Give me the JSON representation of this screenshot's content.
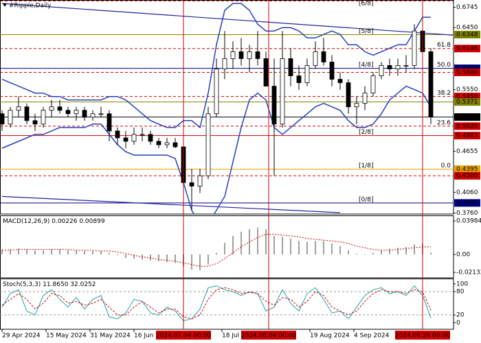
{
  "chart_data": {
    "type": "candlestick",
    "title": "#Ripple,Daily",
    "xlim": [
      "2024-04-29",
      "2024-10-10"
    ],
    "ylim": [
      0.3745,
      0.685
    ],
    "x": [
      "2024-04-29",
      "2024-05-02",
      "2024-05-05",
      "2024-05-08",
      "2024-05-11",
      "2024-05-14",
      "2024-05-17",
      "2024-05-20",
      "2024-05-23",
      "2024-05-26",
      "2024-05-29",
      "2024-06-01",
      "2024-06-04",
      "2024-06-07",
      "2024-06-10",
      "2024-06-13",
      "2024-06-16",
      "2024-06-19",
      "2024-06-22",
      "2024-06-25",
      "2024-06-28",
      "2024-07-01",
      "2024-07-04",
      "2024-07-07",
      "2024-07-10",
      "2024-07-13",
      "2024-07-16",
      "2024-07-19",
      "2024-07-22",
      "2024-07-25",
      "2024-07-28",
      "2024-07-31",
      "2024-08-03",
      "2024-08-06",
      "2024-08-09",
      "2024-08-12",
      "2024-08-15",
      "2024-08-18",
      "2024-08-21",
      "2024-08-24",
      "2024-08-27",
      "2024-08-30",
      "2024-09-02",
      "2024-09-05",
      "2024-09-08",
      "2024-09-11",
      "2024-09-14",
      "2024-09-17",
      "2024-09-20",
      "2024-09-23",
      "2024-09-26",
      "2024-09-29",
      "2024-10-02"
    ],
    "ohlc": [
      [
        0.52,
        0.525,
        0.495,
        0.505
      ],
      [
        0.505,
        0.53,
        0.5,
        0.525
      ],
      [
        0.525,
        0.545,
        0.515,
        0.53
      ],
      [
        0.53,
        0.535,
        0.505,
        0.51
      ],
      [
        0.51,
        0.52,
        0.495,
        0.505
      ],
      [
        0.505,
        0.53,
        0.5,
        0.525
      ],
      [
        0.525,
        0.54,
        0.515,
        0.53
      ],
      [
        0.53,
        0.54,
        0.52,
        0.525
      ],
      [
        0.525,
        0.53,
        0.515,
        0.52
      ],
      [
        0.52,
        0.53,
        0.51,
        0.525
      ],
      [
        0.525,
        0.53,
        0.51,
        0.515
      ],
      [
        0.515,
        0.525,
        0.51,
        0.52
      ],
      [
        0.52,
        0.53,
        0.515,
        0.52
      ],
      [
        0.52,
        0.525,
        0.48,
        0.495
      ],
      [
        0.495,
        0.5,
        0.475,
        0.485
      ],
      [
        0.485,
        0.495,
        0.47,
        0.48
      ],
      [
        0.48,
        0.5,
        0.475,
        0.49
      ],
      [
        0.49,
        0.5,
        0.48,
        0.49
      ],
      [
        0.49,
        0.495,
        0.475,
        0.48
      ],
      [
        0.48,
        0.485,
        0.47,
        0.475
      ],
      [
        0.475,
        0.485,
        0.47,
        0.478
      ],
      [
        0.478,
        0.485,
        0.47,
        0.472
      ],
      [
        0.472,
        0.475,
        0.4,
        0.42
      ],
      [
        0.42,
        0.44,
        0.38,
        0.415
      ],
      [
        0.415,
        0.44,
        0.405,
        0.43
      ],
      [
        0.43,
        0.53,
        0.425,
        0.52
      ],
      [
        0.52,
        0.6,
        0.515,
        0.585
      ],
      [
        0.585,
        0.64,
        0.57,
        0.6
      ],
      [
        0.6,
        0.625,
        0.585,
        0.61
      ],
      [
        0.61,
        0.63,
        0.59,
        0.6
      ],
      [
        0.6,
        0.62,
        0.58,
        0.61
      ],
      [
        0.61,
        0.64,
        0.59,
        0.6
      ],
      [
        0.6,
        0.61,
        0.56,
        0.56
      ],
      [
        0.56,
        0.6,
        0.43,
        0.505
      ],
      [
        0.505,
        0.64,
        0.5,
        0.6
      ],
      [
        0.6,
        0.615,
        0.56,
        0.575
      ],
      [
        0.575,
        0.59,
        0.555,
        0.565
      ],
      [
        0.565,
        0.6,
        0.56,
        0.59
      ],
      [
        0.59,
        0.625,
        0.585,
        0.61
      ],
      [
        0.61,
        0.63,
        0.59,
        0.595
      ],
      [
        0.595,
        0.605,
        0.56,
        0.57
      ],
      [
        0.57,
        0.58,
        0.555,
        0.565
      ],
      [
        0.565,
        0.57,
        0.52,
        0.53
      ],
      [
        0.53,
        0.545,
        0.505,
        0.535
      ],
      [
        0.535,
        0.56,
        0.525,
        0.55
      ],
      [
        0.55,
        0.58,
        0.545,
        0.575
      ],
      [
        0.575,
        0.595,
        0.57,
        0.59
      ],
      [
        0.59,
        0.6,
        0.575,
        0.585
      ],
      [
        0.585,
        0.6,
        0.575,
        0.59
      ],
      [
        0.59,
        0.605,
        0.58,
        0.59
      ],
      [
        0.59,
        0.65,
        0.585,
        0.64
      ],
      [
        0.64,
        0.66,
        0.6,
        0.61
      ],
      [
        0.61,
        0.615,
        0.505,
        0.5152
      ]
    ],
    "bands": {
      "color": "#2040c0",
      "upper": [
        0.57,
        0.565,
        0.56,
        0.555,
        0.55,
        0.55,
        0.545,
        0.545,
        0.54,
        0.54,
        0.54,
        0.54,
        0.54,
        0.545,
        0.545,
        0.54,
        0.53,
        0.52,
        0.51,
        0.505,
        0.5,
        0.5,
        0.51,
        0.51,
        0.5,
        0.55,
        0.62,
        0.67,
        0.68,
        0.68,
        0.67,
        0.65,
        0.64,
        0.64,
        0.645,
        0.645,
        0.64,
        0.63,
        0.63,
        0.635,
        0.64,
        0.635,
        0.62,
        0.62,
        0.61,
        0.605,
        0.61,
        0.615,
        0.62,
        0.62,
        0.64,
        0.66,
        0.66
      ],
      "lower": [
        0.47,
        0.475,
        0.48,
        0.485,
        0.49,
        0.49,
        0.495,
        0.5,
        0.5,
        0.5,
        0.5,
        0.505,
        0.505,
        0.49,
        0.475,
        0.465,
        0.46,
        0.46,
        0.46,
        0.46,
        0.46,
        0.455,
        0.42,
        0.38,
        0.36,
        0.36,
        0.38,
        0.4,
        0.45,
        0.5,
        0.54,
        0.55,
        0.54,
        0.5,
        0.49,
        0.5,
        0.51,
        0.52,
        0.53,
        0.535,
        0.53,
        0.525,
        0.51,
        0.5,
        0.5,
        0.505,
        0.52,
        0.54,
        0.55,
        0.56,
        0.555,
        0.55,
        0.53
      ]
    },
    "trendlines": [
      {
        "x": [
          "2024-04-29",
          "2024-10-10"
        ],
        "y": [
          0.68,
          0.634
        ],
        "color": "#20209f"
      },
      {
        "x": [
          "2024-04-29",
          "2024-08-30"
        ],
        "y": [
          0.4,
          0.3765
        ],
        "color": "#20209f"
      }
    ],
    "yticks": [
      {
        "value": 0.6745,
        "label": "0.6745"
      },
      {
        "value": 0.645,
        "label": "0.6450"
      },
      {
        "value": 0.555,
        "label": "0.5550"
      },
      {
        "value": 0.4655,
        "label": "0.4655"
      },
      {
        "value": 0.406,
        "label": "0.4060"
      },
      {
        "value": 0.376,
        "label": "0.3760"
      }
    ],
    "levels": [
      {
        "value": 0.6836,
        "color": "#c00000",
        "dash": true,
        "tag": "[6/8]"
      },
      {
        "value": 0.6348,
        "label": "0.6348",
        "color": "#808000",
        "tag": "[5/8]"
      },
      {
        "value": 0.6146,
        "label": "0.6146",
        "color": "#d00000",
        "dash": true,
        "fib": "61.8"
      },
      {
        "value": 0.5859,
        "label": "0.5859",
        "color": "#000080",
        "tag": "[4/8]",
        "fib": "50.0"
      },
      {
        "value": 0.58,
        "label": "0.5800",
        "color": "#d00000",
        "dash": true
      },
      {
        "value": 0.545,
        "label": "0.5450",
        "color": "#d00000",
        "dash": true,
        "fib": "38.2"
      },
      {
        "value": 0.5371,
        "label": "0.5371",
        "color": "#808000"
      },
      {
        "value": 0.5152,
        "label": "0.5152",
        "color": "#000000"
      },
      {
        "value": 0.502,
        "label": "0.5020",
        "color": "#d00000",
        "dash": true,
        "fib": "23.6"
      },
      {
        "value": 0.4883,
        "label": "0.4883",
        "color": "#d00000",
        "tag": "[2/8]"
      },
      {
        "value": 0.4395,
        "label": "0.4395",
        "color": "#e8a000",
        "tag": "[1/8]",
        "fib": "0.0"
      },
      {
        "value": 0.43,
        "label": "0.4300",
        "color": "#d00000",
        "dash": true
      },
      {
        "value": 0.3906,
        "label": "0.3906",
        "color": "#000080",
        "tag": "[0/8]"
      }
    ],
    "markers": [
      {
        "x": "2024-07-04",
        "label": "2024.07.04 00:00",
        "color": "#d00000"
      },
      {
        "x": "2024-08-04",
        "label": "2024.08.04 00:00",
        "color": "#d00000"
      },
      {
        "x": "2024-09-29",
        "label": "2024.09.29 00:00",
        "color": "#d00000"
      }
    ],
    "xticks": [
      {
        "value": "2024-04-29",
        "label": "29 Apr 2024"
      },
      {
        "value": "2024-05-15",
        "label": "15 May 2024"
      },
      {
        "value": "2024-05-31",
        "label": "31 May 2024"
      },
      {
        "value": "2024-06-16",
        "label": "16 Jun 2024"
      },
      {
        "value": "2024-07-18",
        "label": "18 Jul 2024"
      },
      {
        "value": "2024-08-19",
        "label": "19 Aug 2024"
      },
      {
        "value": "2024-09-04",
        "label": "4 Sep 2024"
      }
    ],
    "macd": {
      "title": "MACD(12,26,9)",
      "ylim": [
        -0.0278,
        0.0456
      ],
      "yticks": [
        0.03984,
        {
          "value": 0,
          "label": "0.00"
        },
        -0.02132
      ],
      "values": [
        0.006,
        0.006,
        0.007,
        0.006,
        0.005,
        0.005,
        0.006,
        0.006,
        0.005,
        0.005,
        0.004,
        0.004,
        0.004,
        0.002,
        -0.001,
        -0.004,
        -0.005,
        -0.006,
        -0.007,
        -0.008,
        -0.009,
        -0.01,
        -0.014,
        -0.018,
        -0.019,
        -0.012,
        0.002,
        0.014,
        0.022,
        0.027,
        0.03,
        0.032,
        0.03,
        0.022,
        0.021,
        0.019,
        0.016,
        0.015,
        0.016,
        0.016,
        0.013,
        0.01,
        0.005,
        0.001,
        0.0,
        0.002,
        0.005,
        0.007,
        0.008,
        0.009,
        0.012,
        0.013,
        0.00226
      ],
      "color": "#a0a0a0",
      "signal": [
        0.005,
        0.005,
        0.006,
        0.006,
        0.006,
        0.006,
        0.006,
        0.006,
        0.006,
        0.005,
        0.005,
        0.005,
        0.004,
        0.004,
        0.003,
        0.001,
        -0.001,
        -0.003,
        -0.004,
        -0.006,
        -0.007,
        -0.008,
        -0.01,
        -0.012,
        -0.014,
        -0.014,
        -0.011,
        -0.005,
        0.002,
        0.009,
        0.015,
        0.02,
        0.024,
        0.024,
        0.023,
        0.022,
        0.021,
        0.019,
        0.018,
        0.017,
        0.016,
        0.015,
        0.013,
        0.01,
        0.008,
        0.006,
        0.005,
        0.005,
        0.006,
        0.007,
        0.008,
        0.009,
        0.00899
      ],
      "signal_color": "#d00000"
    },
    "stoch": {
      "title": "Stoch(5,3,3)",
      "ylim": [
        -17,
        112
      ],
      "yticks": [
        100,
        80,
        20,
        0
      ],
      "levels": [
        80,
        20
      ],
      "main": [
        40,
        75,
        85,
        30,
        20,
        70,
        85,
        60,
        40,
        65,
        35,
        60,
        70,
        15,
        10,
        25,
        60,
        55,
        25,
        20,
        40,
        30,
        5,
        10,
        35,
        90,
        95,
        85,
        80,
        70,
        80,
        75,
        30,
        40,
        85,
        50,
        30,
        75,
        90,
        60,
        25,
        30,
        10,
        40,
        70,
        85,
        90,
        75,
        80,
        70,
        95,
        70,
        11.865
      ],
      "main_last_label": "11.8650",
      "main_color": "#20a0a0",
      "signal": [
        45,
        60,
        75,
        60,
        35,
        50,
        75,
        70,
        50,
        55,
        45,
        50,
        60,
        40,
        20,
        20,
        40,
        55,
        40,
        25,
        35,
        35,
        15,
        10,
        20,
        60,
        85,
        90,
        85,
        75,
        78,
        75,
        55,
        45,
        65,
        60,
        40,
        55,
        80,
        70,
        40,
        30,
        20,
        30,
        55,
        75,
        85,
        80,
        80,
        75,
        85,
        80,
        32.0252
      ],
      "signal_color": "#d00000"
    }
  }
}
